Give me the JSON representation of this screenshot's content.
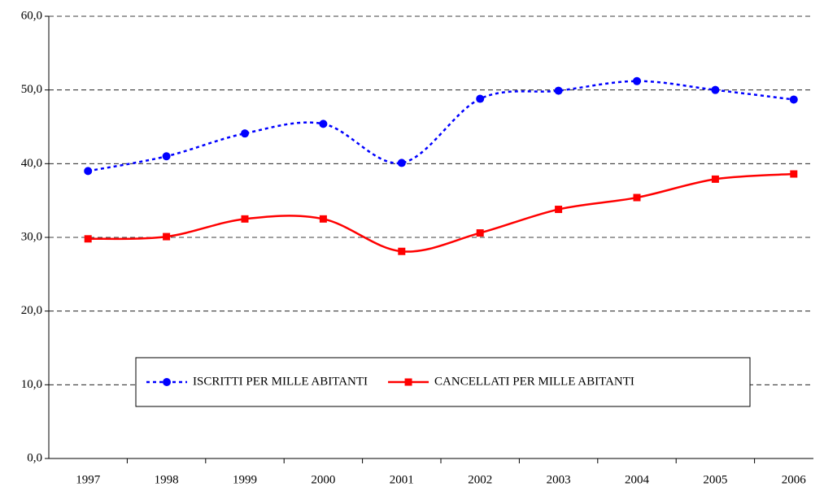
{
  "chart_data": {
    "type": "line",
    "categories": [
      "1997",
      "1998",
      "1999",
      "2000",
      "2001",
      "2002",
      "2003",
      "2004",
      "2005",
      "2006"
    ],
    "series": [
      {
        "name": "ISCRITTI PER MILLE ABITANTI",
        "color": "#0000ff",
        "line_style": "dotted",
        "marker": "circle",
        "values": [
          39.0,
          41.0,
          44.1,
          45.4,
          40.1,
          48.8,
          49.9,
          51.2,
          50.0,
          48.7
        ]
      },
      {
        "name": "CANCELLATI PER MILLE ABITANTI",
        "color": "#ff0000",
        "line_style": "solid",
        "marker": "square",
        "values": [
          29.8,
          30.1,
          32.5,
          32.5,
          28.1,
          30.6,
          33.8,
          35.4,
          37.9,
          38.6
        ]
      }
    ],
    "ylim": [
      0,
      60
    ],
    "yticks": [
      {
        "value": 0,
        "label": "0,0"
      },
      {
        "value": 10,
        "label": "10,0"
      },
      {
        "value": 20,
        "label": "20,0"
      },
      {
        "value": 30,
        "label": "30,0"
      },
      {
        "value": 40,
        "label": "40,0"
      },
      {
        "value": 50,
        "label": "50,0"
      },
      {
        "value": 60,
        "label": "60,0"
      }
    ],
    "grid": true,
    "smooth": true,
    "legend_position": "bottom"
  }
}
